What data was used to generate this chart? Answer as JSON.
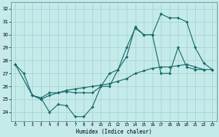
{
  "xlabel": "Humidex (Indice chaleur)",
  "xlim": [
    -0.5,
    23.5
  ],
  "ylim": [
    23.3,
    32.5
  ],
  "yticks": [
    24,
    25,
    26,
    27,
    28,
    29,
    30,
    31,
    32
  ],
  "xticks": [
    0,
    1,
    2,
    3,
    4,
    5,
    6,
    7,
    8,
    9,
    10,
    11,
    12,
    13,
    14,
    15,
    16,
    17,
    18,
    19,
    20,
    21,
    22,
    23
  ],
  "bg_color": "#c5eaea",
  "line_color": "#1a6b6b",
  "line1_x": [
    0,
    1,
    2,
    3,
    4,
    5,
    6,
    7,
    8,
    9,
    10,
    11,
    12,
    13,
    14,
    15,
    16,
    17,
    18,
    19,
    20,
    21,
    22
  ],
  "line1_y": [
    27.7,
    27.0,
    25.3,
    25.1,
    24.0,
    24.6,
    24.5,
    23.65,
    23.65,
    24.4,
    26.0,
    27.0,
    27.3,
    29.0,
    30.5,
    30.0,
    30.0,
    27.0,
    27.0,
    29.0,
    27.5,
    27.3,
    27.3
  ],
  "line2_x": [
    2,
    3,
    4,
    5,
    6,
    7,
    8,
    9,
    10,
    11,
    12,
    13,
    14,
    15,
    16,
    17,
    18,
    19,
    20,
    21,
    22,
    23
  ],
  "line2_y": [
    25.3,
    25.1,
    25.5,
    25.5,
    25.6,
    25.5,
    25.5,
    25.5,
    26.0,
    26.0,
    27.3,
    28.3,
    30.6,
    30.0,
    30.0,
    31.6,
    31.3,
    31.3,
    31.0,
    29.0,
    27.8,
    27.3
  ],
  "line3_x": [
    0,
    2,
    3,
    4,
    5,
    6,
    7,
    8,
    9,
    10,
    11,
    12,
    13,
    14,
    15,
    16,
    17,
    18,
    19,
    20,
    21,
    22,
    23
  ],
  "line3_y": [
    27.7,
    25.3,
    25.0,
    25.3,
    25.5,
    25.7,
    25.8,
    25.9,
    26.0,
    26.1,
    26.2,
    26.4,
    26.6,
    27.0,
    27.2,
    27.4,
    27.5,
    27.5,
    27.6,
    27.7,
    27.5,
    27.3,
    27.3
  ]
}
